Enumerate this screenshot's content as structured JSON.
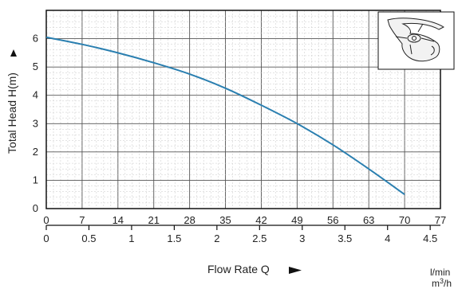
{
  "chart_data": {
    "type": "line",
    "title": "",
    "ylabel": "Total Head H(m)",
    "xlabel": "Flow Rate Q",
    "ylim": [
      0,
      7
    ],
    "yticks": [
      "0",
      "1",
      "2",
      "3",
      "4",
      "5",
      "6"
    ],
    "x_lmin": {
      "unit": "l/min",
      "range": [
        0,
        77
      ],
      "ticks": [
        "0",
        "7",
        "14",
        "21",
        "28",
        "35",
        "42",
        "49",
        "56",
        "63",
        "70",
        "77"
      ]
    },
    "x_m3h": {
      "unit_base": "m",
      "unit_sup": "3",
      "unit_tail": "/h",
      "ticks": [
        "0",
        "0.5",
        "1",
        "1.5",
        "2",
        "2.5",
        "3",
        "3.5",
        "4",
        "4.5"
      ]
    },
    "grid": true,
    "series": [
      {
        "color": "#2a7fb0",
        "x": [
          0,
          7,
          14,
          21,
          28,
          35,
          42,
          49,
          56,
          63,
          70
        ],
        "y": [
          6.05,
          5.8,
          5.5,
          5.15,
          4.75,
          4.25,
          3.65,
          3.0,
          2.25,
          1.4,
          0.5
        ]
      }
    ]
  }
}
